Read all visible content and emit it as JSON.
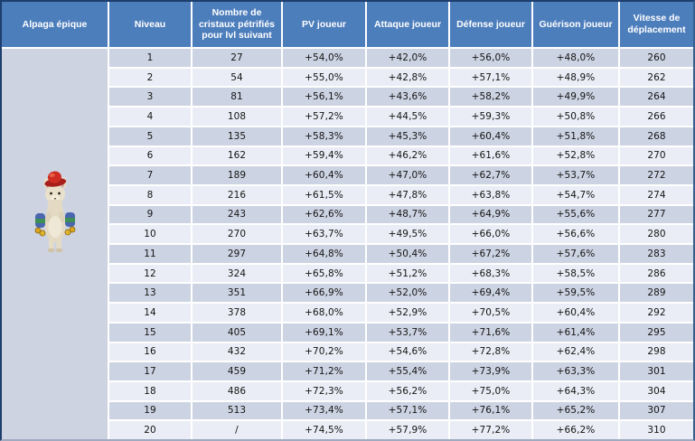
{
  "title": "Alpaga épique",
  "colors": {
    "header_bg": "#4d7ebc",
    "header_text": "#ffffff",
    "row_dark": "#ccd3e2",
    "row_light": "#eaedf5",
    "panel_bg": "#cdd3e0",
    "grid_line": "#ffffff",
    "body_text": "#141414",
    "outer_border": "#1e3e6d"
  },
  "creature": {
    "name": "Alpaga épique",
    "image": "alpaca-with-red-hat-and-saddle-bags"
  },
  "table": {
    "headers": [
      "Alpaga épique",
      "Niveau",
      "Nombre de cristaux pétrifiés pour lvl suivant",
      "PV joueur",
      "Attaque joueur",
      "Défense joueur",
      "Guérison joueur",
      "Vitesse de déplacement"
    ],
    "row_keys": [
      "niveau",
      "cristaux",
      "pv",
      "attaque",
      "defense",
      "guerison",
      "vitesse"
    ],
    "rows": [
      {
        "niveau": "1",
        "cristaux": "27",
        "pv": "+54,0%",
        "attaque": "+42,0%",
        "defense": "+56,0%",
        "guerison": "+48,0%",
        "vitesse": "260"
      },
      {
        "niveau": "2",
        "cristaux": "54",
        "pv": "+55,0%",
        "attaque": "+42,8%",
        "defense": "+57,1%",
        "guerison": "+48,9%",
        "vitesse": "262"
      },
      {
        "niveau": "3",
        "cristaux": "81",
        "pv": "+56,1%",
        "attaque": "+43,6%",
        "defense": "+58,2%",
        "guerison": "+49,9%",
        "vitesse": "264"
      },
      {
        "niveau": "4",
        "cristaux": "108",
        "pv": "+57,2%",
        "attaque": "+44,5%",
        "defense": "+59,3%",
        "guerison": "+50,8%",
        "vitesse": "266"
      },
      {
        "niveau": "5",
        "cristaux": "135",
        "pv": "+58,3%",
        "attaque": "+45,3%",
        "defense": "+60,4%",
        "guerison": "+51,8%",
        "vitesse": "268"
      },
      {
        "niveau": "6",
        "cristaux": "162",
        "pv": "+59,4%",
        "attaque": "+46,2%",
        "defense": "+61,6%",
        "guerison": "+52,8%",
        "vitesse": "270"
      },
      {
        "niveau": "7",
        "cristaux": "189",
        "pv": "+60,4%",
        "attaque": "+47,0%",
        "defense": "+62,7%",
        "guerison": "+53,7%",
        "vitesse": "272"
      },
      {
        "niveau": "8",
        "cristaux": "216",
        "pv": "+61,5%",
        "attaque": "+47,8%",
        "defense": "+63,8%",
        "guerison": "+54,7%",
        "vitesse": "274"
      },
      {
        "niveau": "9",
        "cristaux": "243",
        "pv": "+62,6%",
        "attaque": "+48,7%",
        "defense": "+64,9%",
        "guerison": "+55,6%",
        "vitesse": "277"
      },
      {
        "niveau": "10",
        "cristaux": "270",
        "pv": "+63,7%",
        "attaque": "+49,5%",
        "defense": "+66,0%",
        "guerison": "+56,6%",
        "vitesse": "280"
      },
      {
        "niveau": "11",
        "cristaux": "297",
        "pv": "+64,8%",
        "attaque": "+50,4%",
        "defense": "+67,2%",
        "guerison": "+57,6%",
        "vitesse": "283"
      },
      {
        "niveau": "12",
        "cristaux": "324",
        "pv": "+65,8%",
        "attaque": "+51,2%",
        "defense": "+68,3%",
        "guerison": "+58,5%",
        "vitesse": "286"
      },
      {
        "niveau": "13",
        "cristaux": "351",
        "pv": "+66,9%",
        "attaque": "+52,0%",
        "defense": "+69,4%",
        "guerison": "+59,5%",
        "vitesse": "289"
      },
      {
        "niveau": "14",
        "cristaux": "378",
        "pv": "+68,0%",
        "attaque": "+52,9%",
        "defense": "+70,5%",
        "guerison": "+60,4%",
        "vitesse": "292"
      },
      {
        "niveau": "15",
        "cristaux": "405",
        "pv": "+69,1%",
        "attaque": "+53,7%",
        "defense": "+71,6%",
        "guerison": "+61,4%",
        "vitesse": "295"
      },
      {
        "niveau": "16",
        "cristaux": "432",
        "pv": "+70,2%",
        "attaque": "+54,6%",
        "defense": "+72,8%",
        "guerison": "+62,4%",
        "vitesse": "298"
      },
      {
        "niveau": "17",
        "cristaux": "459",
        "pv": "+71,2%",
        "attaque": "+55,4%",
        "defense": "+73,9%",
        "guerison": "+63,3%",
        "vitesse": "301"
      },
      {
        "niveau": "18",
        "cristaux": "486",
        "pv": "+72,3%",
        "attaque": "+56,2%",
        "defense": "+75,0%",
        "guerison": "+64,3%",
        "vitesse": "304"
      },
      {
        "niveau": "19",
        "cristaux": "513",
        "pv": "+73,4%",
        "attaque": "+57,1%",
        "defense": "+76,1%",
        "guerison": "+65,2%",
        "vitesse": "307"
      },
      {
        "niveau": "20",
        "cristaux": "/",
        "pv": "+74,5%",
        "attaque": "+57,9%",
        "defense": "+77,2%",
        "guerison": "+66,2%",
        "vitesse": "310"
      }
    ]
  }
}
